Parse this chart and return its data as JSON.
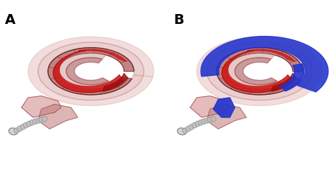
{
  "bg_color": "#ffffff",
  "panel_A_label": "A",
  "panel_B_label": "B",
  "label_fontsize": 14,
  "label_fontweight": "bold",
  "label_color": "#000000",
  "cochlea_pink_light": "#d49090",
  "cochlea_pink_mid": "#c07878",
  "cochlea_red_dark": "#8b2020",
  "cochlea_red_mid": "#aa2828",
  "cochlea_brownred": "#7a3030",
  "implant_red": "#cc1818",
  "implant_darkred": "#991010",
  "electrode_color": "#c0c0c0",
  "electrode_dark": "#606060",
  "fluid_blue": "#2233cc",
  "fluid_blue_light": "#4455dd",
  "figsize": [
    4.74,
    2.59
  ],
  "dpi": 100
}
